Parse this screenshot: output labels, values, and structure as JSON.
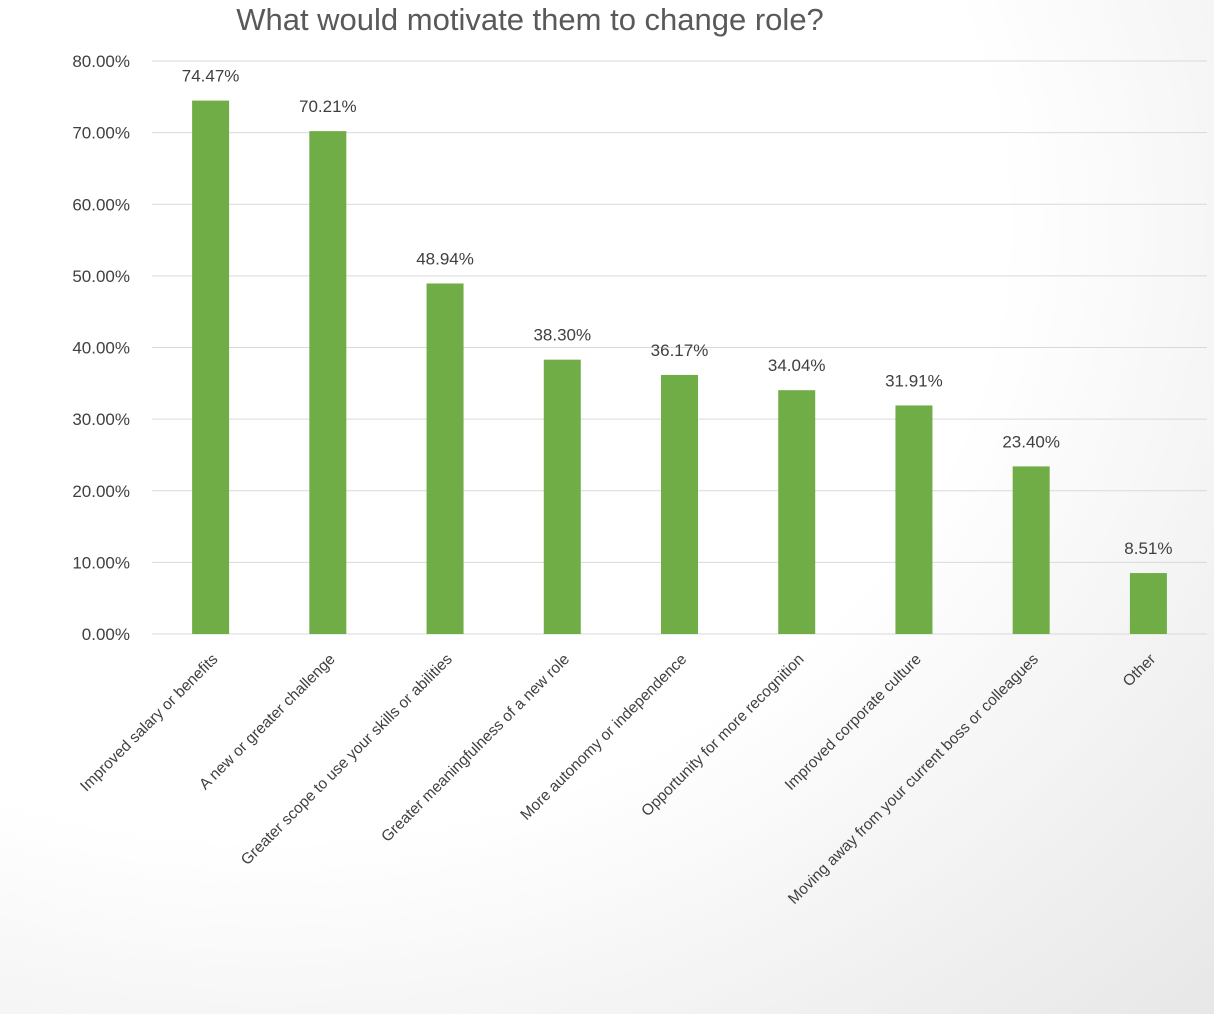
{
  "chart_data": {
    "type": "bar",
    "title": "What would motivate them to change role?",
    "categories": [
      "Improved salary or benefits",
      "A new or greater challenge",
      "Greater scope to use your skills or abilities",
      "Greater meaningfulness of a new role",
      "More autonomy or independence",
      "Opportunity for more recognition",
      "Improved corporate culture",
      "Moving away from your current boss or colleagues",
      "Other"
    ],
    "values": [
      74.47,
      70.21,
      48.94,
      38.3,
      36.17,
      34.04,
      31.91,
      23.4,
      8.51
    ],
    "value_labels": [
      "74.47%",
      "70.21%",
      "48.94%",
      "38.30%",
      "36.17%",
      "34.04%",
      "31.91%",
      "23.40%",
      "8.51%"
    ],
    "y_ticks": [
      0,
      10,
      20,
      30,
      40,
      50,
      60,
      70,
      80
    ],
    "y_tick_labels": [
      "0.00%",
      "10.00%",
      "20.00%",
      "30.00%",
      "40.00%",
      "50.00%",
      "60.00%",
      "70.00%",
      "80.00%"
    ],
    "ylim": [
      0,
      80
    ],
    "xlabel": "",
    "ylabel": "",
    "grid": true,
    "legend": "none",
    "colors": {
      "bar": "#70AD47",
      "grid": "#D9D9D9",
      "text": "#404040",
      "title": "#595959"
    }
  }
}
